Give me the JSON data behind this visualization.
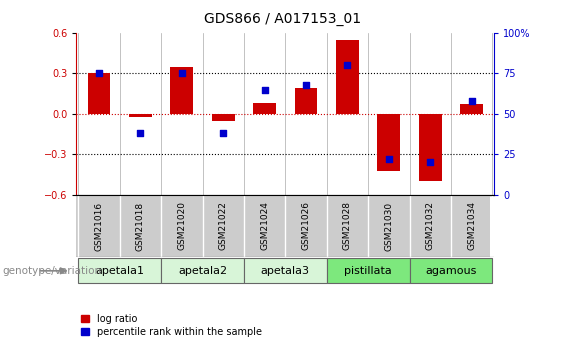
{
  "title": "GDS866 / A017153_01",
  "samples": [
    "GSM21016",
    "GSM21018",
    "GSM21020",
    "GSM21022",
    "GSM21024",
    "GSM21026",
    "GSM21028",
    "GSM21030",
    "GSM21032",
    "GSM21034"
  ],
  "log_ratios": [
    0.3,
    -0.02,
    0.35,
    -0.05,
    0.08,
    0.19,
    0.55,
    -0.42,
    -0.5,
    0.07
  ],
  "percentile_ranks": [
    75,
    38,
    75,
    38,
    65,
    68,
    80,
    22,
    20,
    58
  ],
  "groups": [
    {
      "name": "apetala1",
      "indices": [
        0,
        1
      ],
      "color": "#d8f5d8"
    },
    {
      "name": "apetala2",
      "indices": [
        2,
        3
      ],
      "color": "#d8f5d8"
    },
    {
      "name": "apetala3",
      "indices": [
        4,
        5
      ],
      "color": "#d8f5d8"
    },
    {
      "name": "pistillata",
      "indices": [
        6,
        7
      ],
      "color": "#7de87d"
    },
    {
      "name": "agamous",
      "indices": [
        8,
        9
      ],
      "color": "#7de87d"
    }
  ],
  "bar_color": "#cc0000",
  "dot_color": "#0000cc",
  "ylim_left": [
    -0.6,
    0.6
  ],
  "ylim_right": [
    0,
    100
  ],
  "yticks_left": [
    -0.6,
    -0.3,
    0.0,
    0.3,
    0.6
  ],
  "yticks_right": [
    0,
    25,
    50,
    75,
    100
  ],
  "hline_y": 0.0,
  "hline_color": "#cc0000",
  "dotted_vals": [
    -0.3,
    0.3
  ],
  "dotted_color": "black",
  "bar_width": 0.55,
  "legend_items": [
    {
      "label": "log ratio",
      "color": "#cc0000"
    },
    {
      "label": "percentile rank within the sample",
      "color": "#0000cc"
    }
  ],
  "genotype_label": "genotype/variation",
  "left_axis_color": "#cc0000",
  "right_axis_color": "#0000cc",
  "sample_box_color": "#cccccc",
  "title_fontsize": 10,
  "tick_fontsize": 7,
  "group_fontsize": 8
}
